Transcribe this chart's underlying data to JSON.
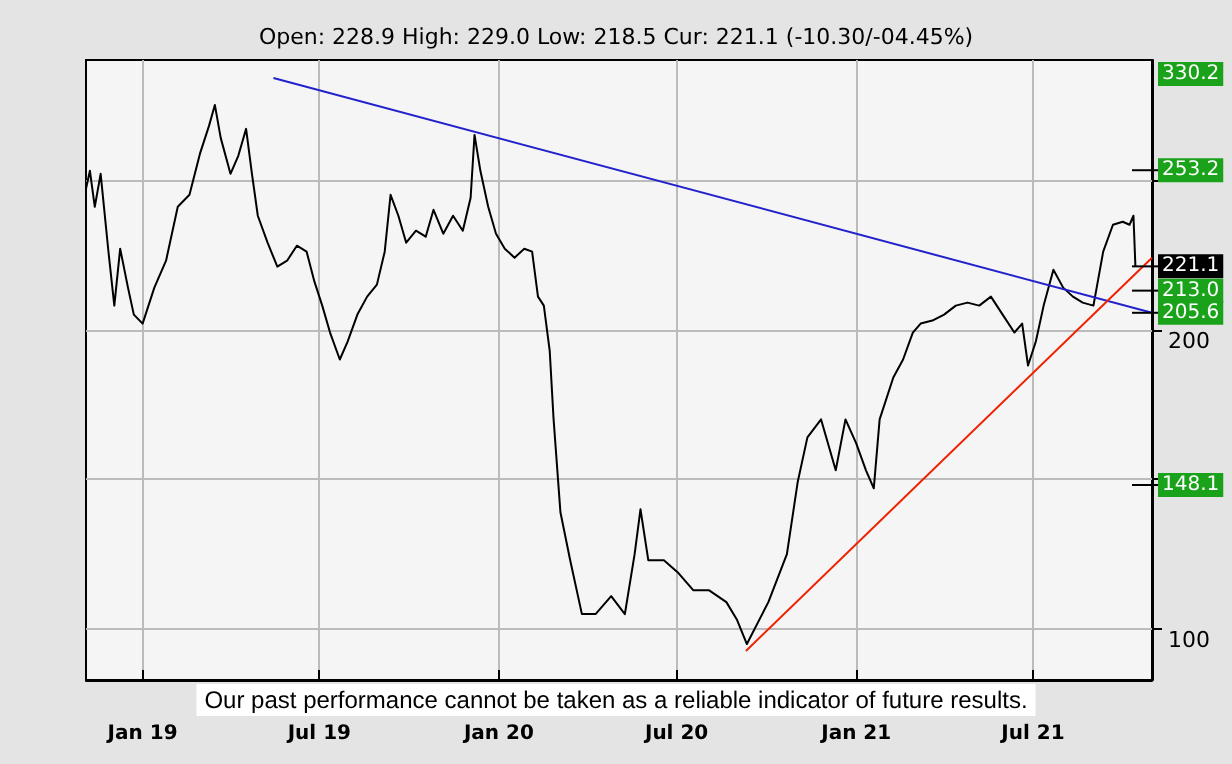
{
  "chart_data": {
    "type": "line",
    "title": "Open: 228.9 High: 229.0 Low: 218.5 Cur: 221.1 (-10.30/-04.45%)",
    "xlim": [
      "2018-11-04",
      "2021-10-31"
    ],
    "xticks": [
      {
        "value": "2019-01-01",
        "label": "Jan 19"
      },
      {
        "value": "2019-07-01",
        "label": "Jul 19"
      },
      {
        "value": "2020-01-01",
        "label": "Jan 20"
      },
      {
        "value": "2020-07-01",
        "label": "Jul 20"
      },
      {
        "value": "2021-01-01",
        "label": "Jan 21"
      },
      {
        "value": "2021-07-01",
        "label": "Jul 21"
      }
    ],
    "ylim": [
      83,
      290
    ],
    "yticks": [
      100,
      {
        "value": 150,
        "label": null
      },
      200,
      {
        "value": 250,
        "label": null
      }
    ],
    "grid": true,
    "marker": "none",
    "line_style": "solid",
    "series": [
      {
        "color": "#000000",
        "x": [
          "2018-11-04",
          "2018-11-08",
          "2018-11-13",
          "2018-11-19",
          "2018-11-27",
          "2018-12-03",
          "2018-12-09",
          "2018-12-17",
          "2018-12-23",
          "2019-01-01",
          "2019-01-13",
          "2019-01-25",
          "2019-02-06",
          "2019-02-18",
          "2019-03-01",
          "2019-03-10",
          "2019-03-16",
          "2019-03-22",
          "2019-04-01",
          "2019-04-09",
          "2019-04-17",
          "2019-04-23",
          "2019-04-29",
          "2019-05-09",
          "2019-05-19",
          "2019-05-29",
          "2019-06-08",
          "2019-06-18",
          "2019-06-26",
          "2019-07-04",
          "2019-07-12",
          "2019-07-22",
          "2019-07-30",
          "2019-08-09",
          "2019-08-19",
          "2019-08-29",
          "2019-09-06",
          "2019-09-12",
          "2019-09-20",
          "2019-09-28",
          "2019-10-08",
          "2019-10-18",
          "2019-10-26",
          "2019-11-05",
          "2019-11-15",
          "2019-11-25",
          "2019-12-03",
          "2019-12-07",
          "2019-12-13",
          "2019-12-21",
          "2019-12-29",
          "2020-01-07",
          "2020-01-17",
          "2020-01-27",
          "2020-02-04",
          "2020-02-10",
          "2020-02-16",
          "2020-02-22",
          "2020-02-26",
          "2020-03-04",
          "2020-03-14",
          "2020-03-26",
          "2020-04-09",
          "2020-04-25",
          "2020-05-09",
          "2020-05-19",
          "2020-05-25",
          "2020-06-02",
          "2020-06-18",
          "2020-07-02",
          "2020-07-18",
          "2020-08-03",
          "2020-08-21",
          "2020-09-01",
          "2020-09-11",
          "2020-10-03",
          "2020-10-22",
          "2020-11-02",
          "2020-11-12",
          "2020-11-26",
          "2020-12-11",
          "2020-12-21",
          "2021-01-01",
          "2021-01-11",
          "2021-01-19",
          "2021-01-25",
          "2021-02-08",
          "2021-02-18",
          "2021-02-28",
          "2021-03-08",
          "2021-03-20",
          "2021-04-01",
          "2021-04-13",
          "2021-04-25",
          "2021-05-07",
          "2021-05-19",
          "2021-05-31",
          "2021-06-12",
          "2021-06-20",
          "2021-06-26",
          "2021-07-04",
          "2021-07-12",
          "2021-07-22",
          "2021-08-01",
          "2021-08-11",
          "2021-08-21",
          "2021-09-01",
          "2021-09-11",
          "2021-09-21",
          "2021-10-01",
          "2021-10-08",
          "2021-10-12",
          "2021-10-14"
        ],
        "values": [
          247,
          253,
          241,
          252,
          226,
          208,
          227,
          214,
          205,
          202,
          214,
          223,
          241,
          245,
          259,
          268,
          275,
          264,
          252,
          258,
          267,
          252,
          238,
          229,
          221,
          223,
          228,
          226,
          216,
          208,
          199,
          190,
          196,
          205,
          211,
          215,
          226,
          245,
          238,
          229,
          233,
          231,
          240,
          232,
          238,
          233,
          244,
          265,
          253,
          241,
          232,
          227,
          224,
          227,
          226,
          211,
          208,
          193,
          170,
          139,
          123,
          105,
          105,
          111,
          105,
          125,
          140,
          123,
          123,
          119,
          113,
          113,
          109,
          103,
          95,
          109,
          125,
          149,
          164,
          170,
          153,
          170,
          162,
          153,
          147,
          170,
          184,
          190,
          199,
          202,
          203,
          205,
          208,
          209,
          208,
          211,
          205,
          199,
          202,
          188,
          196,
          208,
          220,
          214,
          211,
          209,
          208,
          226,
          235,
          236,
          235,
          238,
          221.1
        ]
      },
      {
        "color": "#2222cc",
        "x": [
          "2019-05-15",
          "2021-10-31"
        ],
        "values": [
          284,
          205.6
        ]
      },
      {
        "color": "#ee2200",
        "x": [
          "2020-09-10",
          "2021-10-31"
        ],
        "values": [
          92.7,
          224
        ]
      }
    ],
    "annotations": [
      "330.2",
      "253.2",
      "221.1",
      "213.0",
      "205.6",
      "148.1",
      "Our past performance cannot be taken as a reliable indicator of future results."
    ]
  }
}
